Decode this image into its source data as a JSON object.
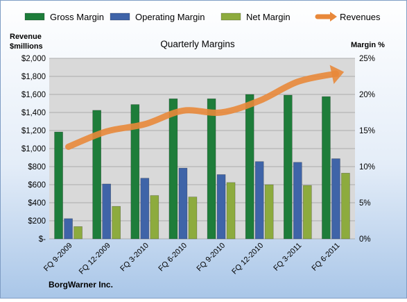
{
  "chart_data": {
    "type": "bar",
    "title": "Quarterly Margins",
    "company": "BorgWarner Inc.",
    "ylabel_left": [
      "Revenue",
      "$millions"
    ],
    "ylabel_right": "Margin %",
    "ylim_left": [
      0,
      2000
    ],
    "ylim_right": [
      0,
      25
    ],
    "yticks_left": [
      "$-",
      "$200",
      "$400",
      "$600",
      "$800",
      "$1,000",
      "$1,200",
      "$1,400",
      "$1,600",
      "$1,800",
      "$2,000"
    ],
    "yticks_right": [
      "0%",
      "5%",
      "10%",
      "15%",
      "20%",
      "25%"
    ],
    "categories": [
      "FQ 9-2009",
      "FQ 12-2009",
      "FQ 3-2010",
      "FQ 6-2010",
      "FQ 9-2010",
      "FQ 12-2010",
      "FQ 3-2011",
      "FQ 6-2011"
    ],
    "series": [
      {
        "name": "Gross Margin",
        "axis": "right",
        "color": "#1e7d3a",
        "values": [
          14.8,
          17.8,
          18.6,
          19.4,
          19.4,
          20.0,
          19.9,
          19.7
        ]
      },
      {
        "name": "Operating Margin",
        "axis": "right",
        "color": "#3f64a8",
        "values": [
          2.8,
          7.6,
          8.4,
          9.8,
          8.9,
          10.7,
          10.6,
          11.1
        ]
      },
      {
        "name": "Net Margin",
        "axis": "right",
        "color": "#8dab3e",
        "values": [
          1.7,
          4.5,
          6.0,
          5.8,
          7.8,
          7.5,
          7.4,
          9.1
        ]
      },
      {
        "name": "Revenues",
        "axis": "left",
        "type": "line",
        "color": "#e8883a",
        "values": [
          1020,
          1190,
          1270,
          1420,
          1400,
          1530,
          1740,
          1830
        ]
      }
    ],
    "legend_position": "top",
    "grid": true,
    "plot_background": "#d9d9d9",
    "page_background": [
      "#ffffff",
      "#a9c6e8"
    ]
  }
}
